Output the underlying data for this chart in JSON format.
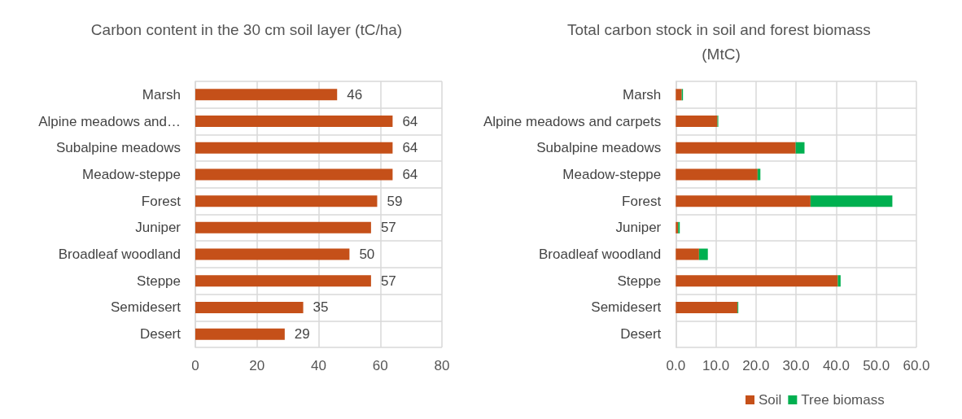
{
  "chart_data": [
    {
      "type": "bar",
      "orientation": "horizontal",
      "title": "Carbon content in the 30 cm soil layer (tC/ha)",
      "categories": [
        "Marsh",
        "Alpine meadows and…",
        "Subalpine meadows",
        "Meadow-steppe",
        "Forest",
        "Juniper",
        "Broadleaf woodland",
        "Steppe",
        "Semidesert",
        "Desert"
      ],
      "values": [
        46,
        64,
        64,
        64,
        59,
        57,
        50,
        57,
        35,
        29
      ],
      "color": "#c55019",
      "data_labels": true,
      "xlim": [
        0,
        80
      ],
      "xticks": [
        0,
        20,
        40,
        60,
        80
      ],
      "grid": true,
      "legend": false
    },
    {
      "type": "bar",
      "orientation": "horizontal",
      "stacked": true,
      "title": "Total carbon stock in soil and forest biomass (MtC)",
      "categories": [
        "Marsh",
        "Alpine meadows and carpets",
        "Subalpine meadows",
        "Meadow-steppe",
        "Forest",
        "Juniper",
        "Broadleaf woodland",
        "Steppe",
        "Semidesert",
        "Desert"
      ],
      "series": [
        {
          "name": "Soil",
          "color": "#c55019",
          "values": [
            1.5,
            10.4,
            29.9,
            20.4,
            33.6,
            0.6,
            5.8,
            40.4,
            15.4,
            0
          ]
        },
        {
          "name": "Tree biomass",
          "color": "#00b050",
          "values": [
            0.3,
            0.2,
            2.2,
            0.7,
            20.4,
            0.4,
            2.2,
            0.7,
            0.2,
            0
          ]
        }
      ],
      "xlim": [
        0,
        60
      ],
      "xticks": [
        {
          "value": 0,
          "label": "0.0"
        },
        {
          "value": 10,
          "label": "10.0"
        },
        {
          "value": 20,
          "label": "20.0"
        },
        {
          "value": 30,
          "label": "30.0"
        },
        {
          "value": 40,
          "label": "40.0"
        },
        {
          "value": 50,
          "label": "50.0"
        },
        {
          "value": 60,
          "label": "60.0"
        }
      ],
      "grid": true,
      "legend": "bottom"
    }
  ]
}
